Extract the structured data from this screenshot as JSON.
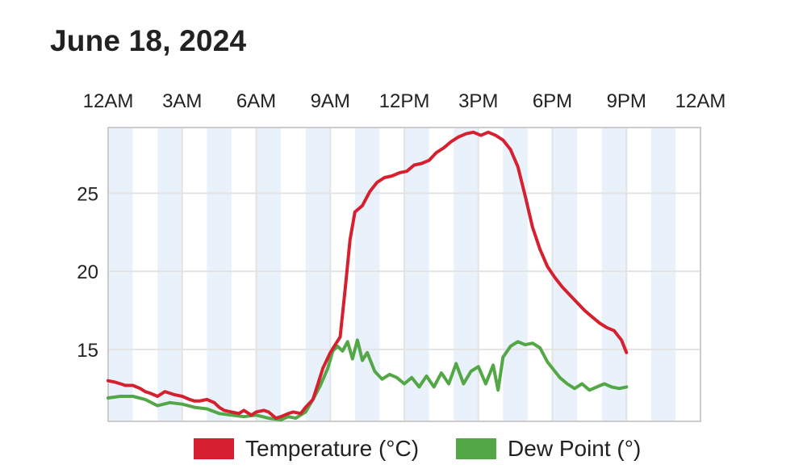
{
  "page": {
    "title": "June 18, 2024"
  },
  "legend": {
    "items": [
      {
        "label": "Temperature (°C)",
        "color": "#d7202f"
      },
      {
        "label": "Dew Point (°)",
        "color": "#53a746"
      }
    ]
  },
  "colors": {
    "band": "#e9f2fb",
    "grid": "#e3e3e3",
    "axis": "#cccccc"
  },
  "chart_data": {
    "type": "line",
    "xlabel": "",
    "ylabel": "",
    "x_range_hours": [
      0,
      24
    ],
    "x_ticks": [
      {
        "hour": 0,
        "label": "12AM"
      },
      {
        "hour": 3,
        "label": "3AM"
      },
      {
        "hour": 6,
        "label": "6AM"
      },
      {
        "hour": 9,
        "label": "9AM"
      },
      {
        "hour": 12,
        "label": "12PM"
      },
      {
        "hour": 15,
        "label": "3PM"
      },
      {
        "hour": 18,
        "label": "6PM"
      },
      {
        "hour": 21,
        "label": "9PM"
      },
      {
        "hour": 24,
        "label": "12AM"
      }
    ],
    "y_ticks": [
      15,
      20,
      25
    ],
    "ylim": [
      10.4,
      29.2
    ],
    "grid": true,
    "legend_position": "bottom",
    "series": [
      {
        "name": "Temperature (°C)",
        "color": "#d7202f",
        "x": [
          0,
          0.3,
          0.5,
          0.7,
          1.0,
          1.3,
          1.5,
          1.7,
          2.0,
          2.3,
          2.5,
          2.7,
          3.0,
          3.3,
          3.5,
          3.7,
          4.0,
          4.3,
          4.5,
          4.7,
          5.0,
          5.3,
          5.5,
          5.8,
          6.0,
          6.3,
          6.5,
          6.8,
          7.0,
          7.3,
          7.5,
          7.8,
          8.0,
          8.3,
          8.5,
          8.7,
          9.0,
          9.2,
          9.4,
          9.6,
          9.8,
          10.0,
          10.3,
          10.6,
          10.9,
          11.2,
          11.5,
          11.8,
          12.1,
          12.4,
          12.7,
          13.0,
          13.3,
          13.6,
          13.9,
          14.2,
          14.5,
          14.8,
          15.1,
          15.4,
          15.7,
          16.0,
          16.3,
          16.6,
          16.9,
          17.2,
          17.5,
          17.8,
          18.1,
          18.4,
          18.7,
          19.0,
          19.3,
          19.6,
          19.9,
          20.2,
          20.5,
          20.8,
          21.0
        ],
        "values": [
          13.0,
          12.9,
          12.8,
          12.7,
          12.7,
          12.5,
          12.3,
          12.2,
          12.0,
          12.3,
          12.2,
          12.1,
          12.0,
          11.8,
          11.7,
          11.7,
          11.8,
          11.6,
          11.3,
          11.1,
          11.0,
          10.9,
          11.1,
          10.8,
          11.0,
          11.1,
          11.0,
          10.6,
          10.7,
          10.9,
          11.0,
          10.9,
          11.3,
          11.8,
          12.8,
          13.8,
          14.8,
          15.3,
          15.8,
          18.8,
          22.0,
          23.8,
          24.2,
          25.1,
          25.7,
          26.0,
          26.1,
          26.3,
          26.4,
          26.8,
          26.9,
          27.1,
          27.6,
          27.9,
          28.3,
          28.6,
          28.8,
          28.9,
          28.7,
          28.9,
          28.7,
          28.4,
          27.8,
          26.7,
          24.8,
          22.8,
          21.4,
          20.3,
          19.6,
          19.0,
          18.5,
          18.0,
          17.5,
          17.1,
          16.7,
          16.4,
          16.2,
          15.6,
          14.8
        ]
      },
      {
        "name": "Dew Point (°)",
        "color": "#53a746",
        "x": [
          0,
          0.5,
          1.0,
          1.5,
          2.0,
          2.5,
          3.0,
          3.5,
          4.0,
          4.5,
          5.0,
          5.5,
          6.0,
          6.5,
          7.0,
          7.3,
          7.6,
          8.0,
          8.3,
          8.6,
          8.9,
          9.1,
          9.3,
          9.5,
          9.7,
          9.9,
          10.1,
          10.3,
          10.5,
          10.8,
          11.1,
          11.4,
          11.7,
          12.0,
          12.3,
          12.6,
          12.9,
          13.2,
          13.5,
          13.8,
          14.1,
          14.4,
          14.7,
          15.0,
          15.3,
          15.6,
          15.8,
          16.0,
          16.3,
          16.6,
          16.9,
          17.2,
          17.5,
          17.8,
          18.0,
          18.3,
          18.6,
          18.9,
          19.2,
          19.5,
          19.8,
          20.1,
          20.4,
          20.7,
          21.0
        ],
        "values": [
          11.9,
          12.0,
          12.0,
          11.8,
          11.4,
          11.6,
          11.5,
          11.3,
          11.2,
          10.9,
          10.8,
          10.7,
          10.8,
          10.6,
          10.5,
          10.7,
          10.6,
          11.0,
          11.8,
          12.7,
          13.8,
          14.9,
          15.2,
          14.9,
          15.5,
          14.4,
          15.6,
          14.3,
          14.8,
          13.6,
          13.1,
          13.4,
          13.2,
          12.8,
          13.2,
          12.6,
          13.3,
          12.6,
          13.5,
          12.8,
          14.1,
          12.8,
          13.6,
          13.9,
          12.8,
          14.0,
          12.4,
          14.5,
          15.2,
          15.5,
          15.3,
          15.4,
          15.1,
          14.2,
          13.8,
          13.2,
          12.8,
          12.5,
          12.8,
          12.4,
          12.6,
          12.8,
          12.6,
          12.5,
          12.6
        ]
      }
    ]
  }
}
